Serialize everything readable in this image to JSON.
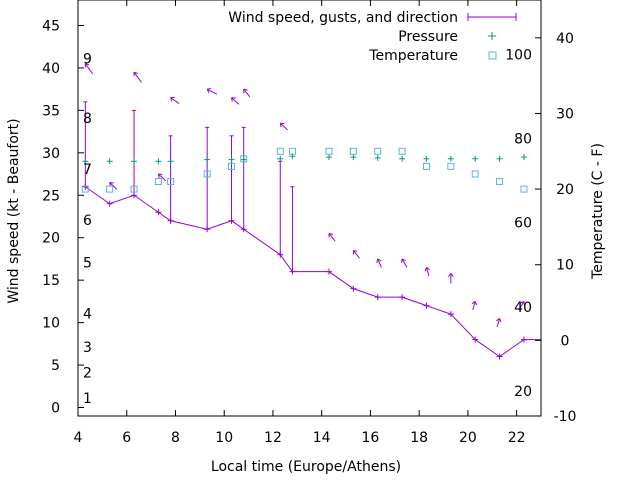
{
  "chart_data": {
    "type": "line",
    "xlabel": "Local time (Europe/Athens)",
    "ylabel": "Wind speed (kt - Beaufort)",
    "y2label": "Temperature (C - F)",
    "xlim": [
      4,
      23
    ],
    "ylim": [
      -1,
      48
    ],
    "y2lim": [
      -10,
      45
    ],
    "x_ticks": [
      4,
      6,
      8,
      10,
      12,
      14,
      16,
      18,
      20,
      22
    ],
    "y_ticks": [
      0,
      5,
      10,
      15,
      20,
      25,
      30,
      35,
      40,
      45
    ],
    "y2_ticks": [
      -10,
      0,
      10,
      20,
      30,
      40
    ],
    "grid": false,
    "legend_position": "top-right",
    "beaufort_labels": [
      {
        "text": "1",
        "y": 1.1
      },
      {
        "text": "2",
        "y": 4.1
      },
      {
        "text": "3",
        "y": 7.1
      },
      {
        "text": "4",
        "y": 11.1
      },
      {
        "text": "5",
        "y": 17.1
      },
      {
        "text": "6",
        "y": 22.1
      },
      {
        "text": "7",
        "y": 28.1
      },
      {
        "text": "8",
        "y": 34.1
      },
      {
        "text": "9",
        "y": 41.1
      }
    ],
    "fahrenheit_labels": [
      {
        "text": "20",
        "y2": -6.7
      },
      {
        "text": "40",
        "y2": 4.4
      },
      {
        "text": "60",
        "y2": 15.6
      },
      {
        "text": "80",
        "y2": 26.7
      },
      {
        "text": "100",
        "y2": 37.8
      }
    ],
    "series": [
      {
        "name": "Wind speed, gusts, and direction",
        "color": "#9400d3",
        "x": [
          4.3,
          5.3,
          6.3,
          7.3,
          7.8,
          9.3,
          10.3,
          10.8,
          12.3,
          12.8,
          14.3,
          15.3,
          16.3,
          17.3,
          18.3,
          19.3,
          20.3,
          21.3,
          22.3,
          23
        ],
        "y": [
          26,
          24,
          25,
          23,
          22,
          21,
          22,
          21,
          18,
          16,
          16,
          14,
          13,
          13,
          12,
          11,
          8,
          6,
          8,
          8
        ],
        "gusts": [
          {
            "x": 4.3,
            "y": 36
          },
          {
            "x": 6.3,
            "y": 35
          },
          {
            "x": 7.8,
            "y": 32
          },
          {
            "x": 9.3,
            "y": 33
          },
          {
            "x": 10.3,
            "y": 32
          },
          {
            "x": 10.8,
            "y": 33
          },
          {
            "x": 12.3,
            "y": 29
          },
          {
            "x": 12.8,
            "y": 26
          }
        ],
        "directions": [
          {
            "x": 4.3,
            "y": 40.5,
            "dx": 0.3,
            "dy": -1.2
          },
          {
            "x": 5.3,
            "y": 26.5,
            "dx": 0.3,
            "dy": -0.8
          },
          {
            "x": 6.3,
            "y": 39.5,
            "dx": 0.3,
            "dy": -1.2
          },
          {
            "x": 7.3,
            "y": 27.5,
            "dx": 0.3,
            "dy": -0.8
          },
          {
            "x": 7.8,
            "y": 36.5,
            "dx": 0.35,
            "dy": -0.7
          },
          {
            "x": 9.3,
            "y": 37.5,
            "dx": 0.4,
            "dy": -0.6
          },
          {
            "x": 10.3,
            "y": 36.5,
            "dx": 0.3,
            "dy": -0.8
          },
          {
            "x": 10.8,
            "y": 37.5,
            "dx": 0.25,
            "dy": -0.9
          },
          {
            "x": 12.3,
            "y": 33.5,
            "dx": 0.3,
            "dy": -0.8
          },
          {
            "x": 14.3,
            "y": 20.5,
            "dx": 0.25,
            "dy": -0.9
          },
          {
            "x": 15.3,
            "y": 18.5,
            "dx": 0.25,
            "dy": -0.9
          },
          {
            "x": 16.3,
            "y": 17.5,
            "dx": 0.15,
            "dy": -1.0
          },
          {
            "x": 17.3,
            "y": 17.5,
            "dx": 0.2,
            "dy": -1.0
          },
          {
            "x": 18.3,
            "y": 16.5,
            "dx": 0.1,
            "dy": -1.0
          },
          {
            "x": 19.3,
            "y": 15.8,
            "dx": 0.0,
            "dy": -1.2
          },
          {
            "x": 20.3,
            "y": 12.5,
            "dx": -0.1,
            "dy": -1.0
          },
          {
            "x": 21.3,
            "y": 10.5,
            "dx": -0.1,
            "dy": -1.0
          },
          {
            "x": 22.3,
            "y": 12.5,
            "dx": -0.2,
            "dy": -1.0
          }
        ]
      },
      {
        "name": "Pressure",
        "color": "#009e73",
        "axis": "y1",
        "x": [
          4.3,
          5.3,
          6.3,
          7.3,
          7.8,
          9.3,
          10.3,
          10.8,
          12.3,
          12.8,
          14.3,
          15.3,
          16.3,
          17.3,
          18.3,
          19.3,
          20.3,
          21.3,
          22.3
        ],
        "y": [
          29,
          29,
          29,
          29,
          29,
          29.2,
          29.2,
          29.2,
          29.3,
          29.6,
          29.5,
          29.5,
          29.4,
          29.3,
          29.3,
          29.3,
          29.3,
          29.3,
          29.5
        ]
      },
      {
        "name": "Temperature",
        "color": "#56b4e9",
        "axis": "y2",
        "x": [
          4.3,
          5.3,
          6.3,
          7.3,
          7.8,
          9.3,
          10.3,
          10.8,
          12.3,
          12.8,
          14.3,
          15.3,
          16.3,
          17.3,
          18.3,
          19.3,
          20.3,
          21.3,
          22.3
        ],
        "y": [
          20,
          20,
          20,
          21,
          21,
          22,
          23,
          24,
          25,
          25,
          25,
          25,
          25,
          25,
          23,
          23,
          22,
          21,
          20
        ]
      }
    ]
  }
}
